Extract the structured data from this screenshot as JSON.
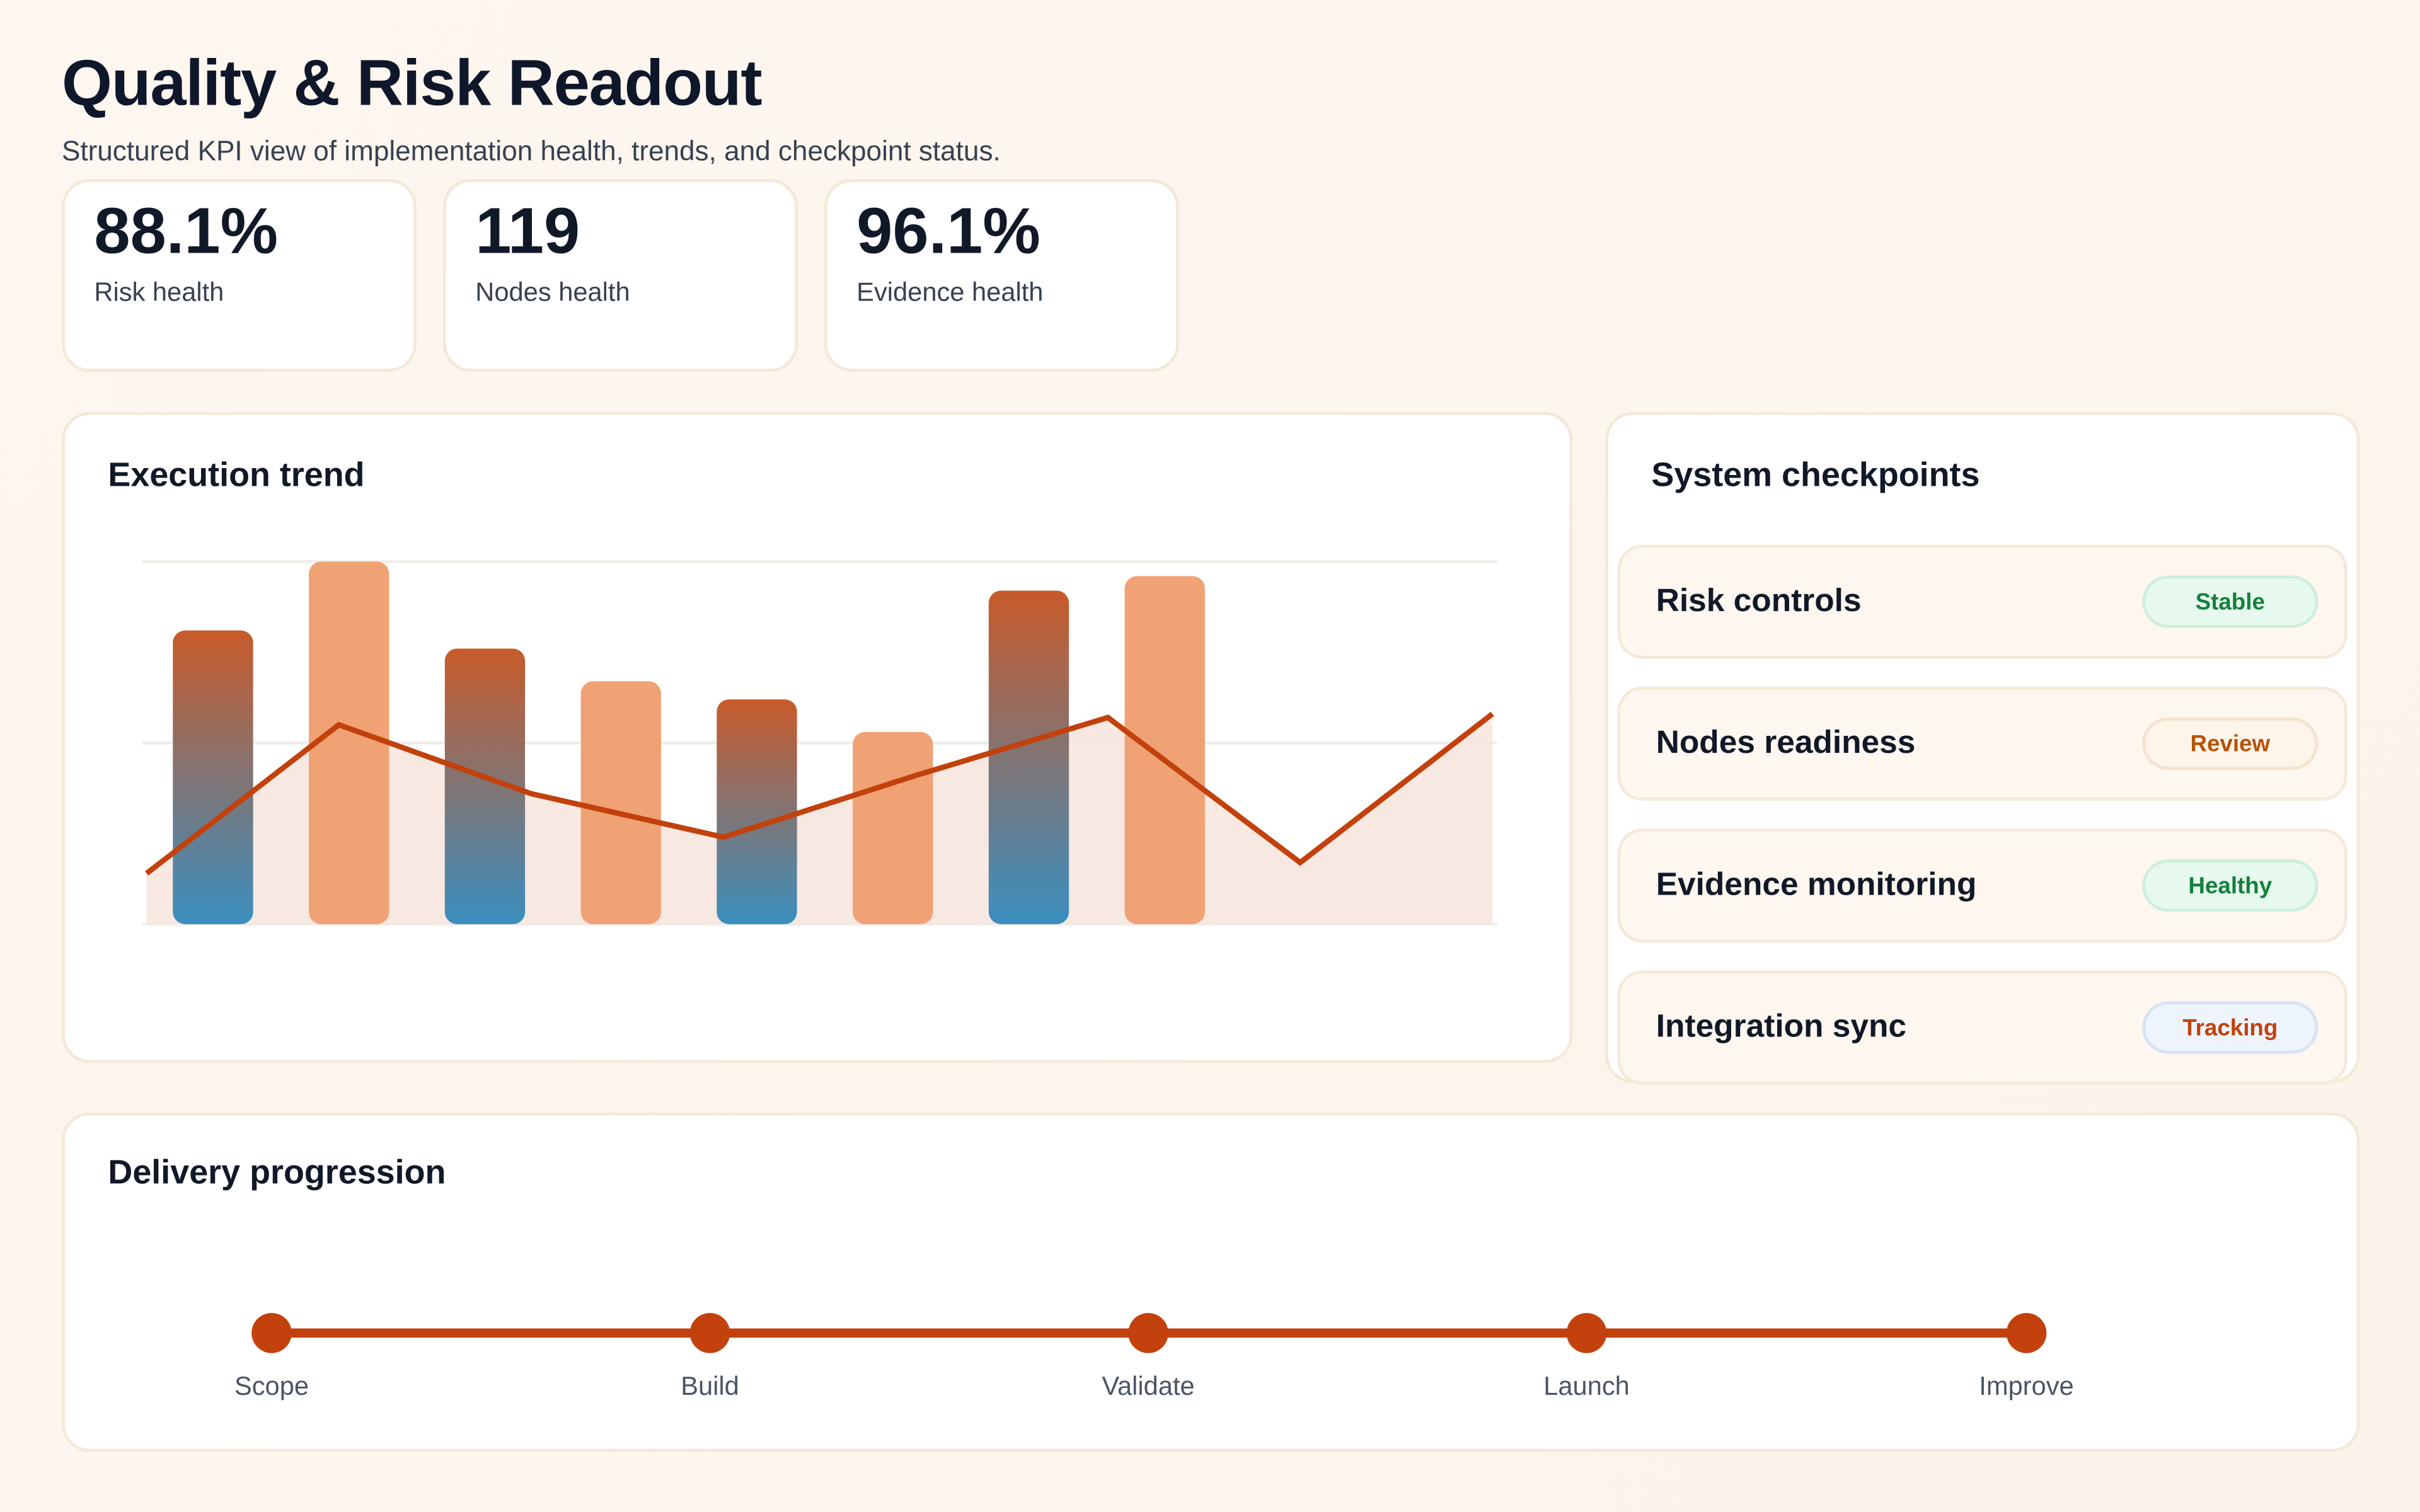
{
  "header": {
    "title": "Quality & Risk Readout",
    "subtitle": "Structured KPI view of implementation health, trends, and checkpoint status."
  },
  "kpis": [
    {
      "value": "88.1%",
      "label": "Risk health"
    },
    {
      "value": "119",
      "label": "Nodes health"
    },
    {
      "value": "96.1%",
      "label": "Evidence health"
    }
  ],
  "trend": {
    "title": "Execution trend",
    "chart_data": {
      "type": "bar",
      "ylim": [
        0,
        100
      ],
      "grid": true,
      "bars": [
        81,
        100,
        76,
        67,
        62,
        53,
        92,
        96
      ],
      "line": [
        14,
        55,
        36,
        24,
        41,
        57,
        17,
        58
      ],
      "colors": {
        "bar_dark_top": "#c85a2a",
        "bar_dark_bottom": "#3a8fbf",
        "bar_light": "#f0a274",
        "line": "#c2410c",
        "area": "#f6e4dc"
      }
    }
  },
  "checkpoints": {
    "title": "System checkpoints",
    "items": [
      {
        "label": "Risk controls",
        "status": "Stable",
        "text_color": "#15803d",
        "bg": "#e7f8ee",
        "border": "#cdeedb"
      },
      {
        "label": "Nodes readiness",
        "status": "Review",
        "text_color": "#b45309",
        "bg": "#fdf4ea",
        "border": "#f3e3cf"
      },
      {
        "label": "Evidence monitoring",
        "status": "Healthy",
        "text_color": "#15803d",
        "bg": "#e7f8ee",
        "border": "#cdeedb"
      },
      {
        "label": "Integration sync",
        "status": "Tracking",
        "text_color": "#c2410c",
        "bg": "#eef4fc",
        "border": "#d6e3f4"
      }
    ]
  },
  "delivery": {
    "title": "Delivery progression",
    "steps": [
      "Scope",
      "Build",
      "Validate",
      "Launch",
      "Improve"
    ],
    "color": "#c2410c"
  }
}
